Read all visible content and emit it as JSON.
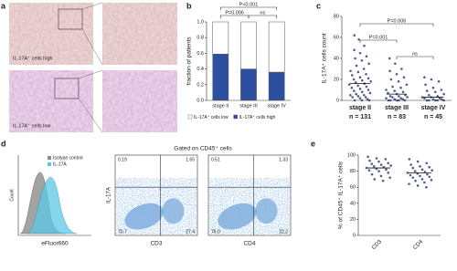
{
  "panel_labels": [
    "a",
    "b",
    "c",
    "d",
    "e"
  ],
  "histology": {
    "labels": [
      "IL-17A⁺ cells high",
      "IL-17A⁺ cells low"
    ]
  },
  "flow_title": "Gated on CD45⁺ cells",
  "chart_data": [
    {
      "type": "stacked-bar",
      "y_label": "fraction of patients",
      "categories": [
        "stage II",
        "stage III",
        "stage IV"
      ],
      "series": [
        {
          "name": "IL-17A⁺ cells high",
          "color": "#2d4f9f",
          "values": [
            0.59,
            0.4,
            0.36
          ]
        },
        {
          "name": "IL-17A⁺ cells low",
          "color": "#ffffff",
          "values": [
            0.41,
            0.6,
            0.64
          ]
        }
      ],
      "ylim": [
        0,
        1
      ],
      "yticks": [
        {
          "value": 0,
          "label": "0.0"
        },
        0.2,
        0.4,
        0.6,
        0.8,
        {
          "value": 1,
          "label": "1.0"
        }
      ],
      "annotations": [
        "P<0.001",
        "P=0.006",
        "ns"
      ]
    },
    {
      "type": "dot",
      "y_label": "IL-17A⁺ cells count",
      "color": "#27346f",
      "categories": [
        "stage II",
        "stage III",
        "stage IV"
      ],
      "category_notes": [
        "n = 131",
        "n = 83",
        "n = 45"
      ],
      "points": [
        [
          62,
          58,
          52,
          48,
          45,
          42,
          40,
          38,
          35,
          33,
          30,
          28,
          27,
          25,
          24,
          22,
          21,
          20,
          19,
          18,
          17,
          16,
          15,
          14,
          13,
          12,
          11,
          10,
          9,
          8,
          7,
          6,
          5,
          5,
          4,
          3,
          3,
          2,
          1,
          0,
          0,
          0
        ],
        [
          40,
          35,
          30,
          28,
          25,
          22,
          20,
          18,
          15,
          13,
          12,
          10,
          9,
          8,
          7,
          6,
          5,
          4,
          4,
          3,
          3,
          2,
          2,
          1,
          1,
          0,
          0,
          0,
          0,
          0
        ],
        [
          22,
          20,
          18,
          15,
          12,
          10,
          9,
          8,
          6,
          5,
          4,
          3,
          3,
          2,
          2,
          1,
          1,
          0,
          0,
          0,
          0,
          0
        ]
      ],
      "means": [
        16,
        6,
        3
      ],
      "ylim": [
        0,
        80
      ],
      "yticks": [
        0,
        20,
        40,
        60,
        80
      ],
      "annotations": [
        "P=0.006",
        "P=0.001",
        "ns"
      ]
    },
    {
      "type": "flow-histogram",
      "x_label": "eFluor660",
      "y_label": "Count",
      "legend": [
        {
          "name": "Isotype control",
          "color": "#8c8c8c"
        },
        {
          "name": "IL-17A",
          "color": "#5cc8e6"
        }
      ]
    },
    {
      "type": "quadrant",
      "x_label": "CD3",
      "y_label": "IL-17A",
      "quadrants": [
        "0.19",
        "1.65",
        "70.7",
        "27.4"
      ]
    },
    {
      "type": "quadrant",
      "x_label": "CD4",
      "quadrants": [
        "0.51",
        "1.33",
        "76.0",
        "22.2"
      ]
    },
    {
      "type": "dot",
      "y_label": "% of CD45⁺ IL-17A⁺ cells",
      "color": "#27346f",
      "categories": [
        "CD3",
        "CD4"
      ],
      "points": [
        [
          98,
          96,
          95,
          93,
          92,
          90,
          89,
          88,
          87,
          86,
          85,
          84,
          83,
          82,
          81,
          80,
          78,
          76,
          74,
          72,
          70,
          68
        ],
        [
          95,
          92,
          90,
          88,
          86,
          85,
          84,
          82,
          81,
          80,
          79,
          78,
          77,
          76,
          75,
          74,
          73,
          72,
          70,
          69,
          68,
          66,
          64,
          62,
          60
        ]
      ],
      "means": [
        84,
        78
      ],
      "ylim": [
        0,
        100
      ],
      "yticks": [
        0,
        20,
        40,
        60,
        80,
        100
      ]
    }
  ]
}
